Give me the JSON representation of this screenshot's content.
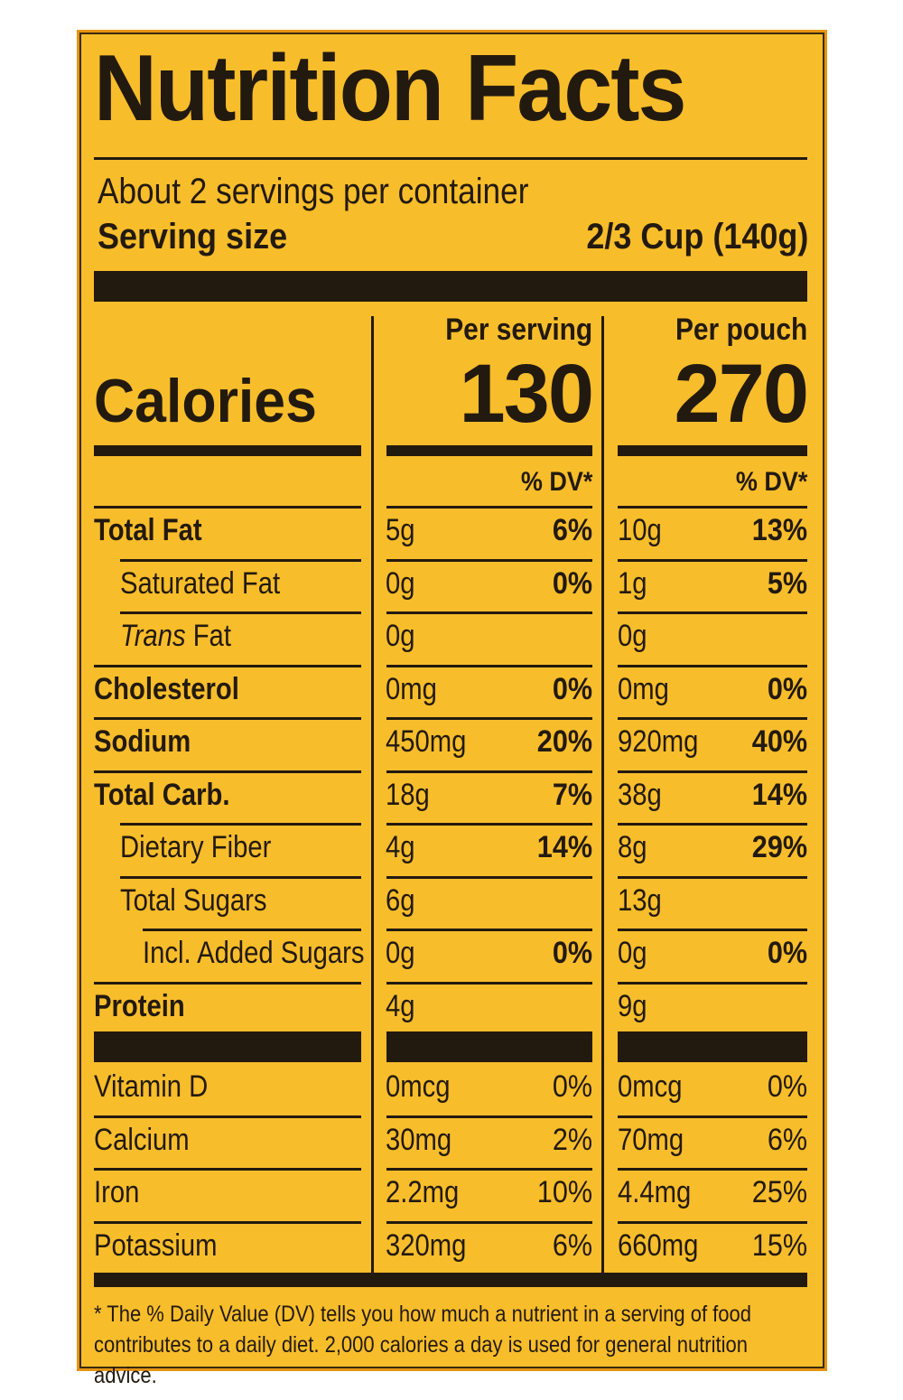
{
  "title": "Nutrition Facts",
  "servings_per_container": "About 2 servings per container",
  "serving_size_label": "Serving size",
  "serving_size_value": "2/3 Cup (140g)",
  "columns": {
    "per_serving": "Per serving",
    "per_pouch": "Per pouch"
  },
  "calories": {
    "label": "Calories",
    "per_serving": "130",
    "per_pouch": "270"
  },
  "dv_header": "% DV*",
  "nutrients": [
    {
      "label": "Total Fat",
      "bold": true,
      "indent": 0,
      "serving_amt": "5g",
      "serving_dv": "6%",
      "pouch_amt": "10g",
      "pouch_dv": "13%"
    },
    {
      "label": "Saturated Fat",
      "bold": false,
      "indent": 1,
      "serving_amt": "0g",
      "serving_dv": "0%",
      "pouch_amt": "1g",
      "pouch_dv": "5%"
    },
    {
      "label_italic": "Trans",
      "label": " Fat",
      "bold": false,
      "indent": 1,
      "serving_amt": "0g",
      "serving_dv": "",
      "pouch_amt": "0g",
      "pouch_dv": ""
    },
    {
      "label": "Cholesterol",
      "bold": true,
      "indent": 0,
      "serving_amt": "0mg",
      "serving_dv": "0%",
      "pouch_amt": "0mg",
      "pouch_dv": "0%"
    },
    {
      "label": "Sodium",
      "bold": true,
      "indent": 0,
      "serving_amt": "450mg",
      "serving_dv": "20%",
      "pouch_amt": "920mg",
      "pouch_dv": "40%"
    },
    {
      "label": "Total Carb.",
      "bold": true,
      "indent": 0,
      "serving_amt": "18g",
      "serving_dv": "7%",
      "pouch_amt": "38g",
      "pouch_dv": "14%"
    },
    {
      "label": "Dietary Fiber",
      "bold": false,
      "indent": 1,
      "serving_amt": "4g",
      "serving_dv": "14%",
      "pouch_amt": "8g",
      "pouch_dv": "29%"
    },
    {
      "label": "Total Sugars",
      "bold": false,
      "indent": 1,
      "serving_amt": "6g",
      "serving_dv": "",
      "pouch_amt": "13g",
      "pouch_dv": ""
    },
    {
      "label": "Incl. Added Sugars",
      "bold": false,
      "indent": 2,
      "serving_amt": "0g",
      "serving_dv": "0%",
      "pouch_amt": "0g",
      "pouch_dv": "0%"
    },
    {
      "label": "Protein",
      "bold": true,
      "indent": 0,
      "serving_amt": "4g",
      "serving_dv": "",
      "pouch_amt": "9g",
      "pouch_dv": ""
    }
  ],
  "vitamins": [
    {
      "label": "Vitamin D",
      "serving_amt": "0mcg",
      "serving_dv": "0%",
      "pouch_amt": "0mcg",
      "pouch_dv": "0%"
    },
    {
      "label": "Calcium",
      "serving_amt": "30mg",
      "serving_dv": "2%",
      "pouch_amt": "70mg",
      "pouch_dv": "6%"
    },
    {
      "label": "Iron",
      "serving_amt": "2.2mg",
      "serving_dv": "10%",
      "pouch_amt": "4.4mg",
      "pouch_dv": "25%"
    },
    {
      "label": "Potassium",
      "serving_amt": "320mg",
      "serving_dv": "6%",
      "pouch_amt": "660mg",
      "pouch_dv": "15%"
    }
  ],
  "footnote": "* The % Daily Value (DV) tells you how much a nutrient in a serving of food contributes to a daily diet. 2,000 calories a day is used for general nutrition advice.",
  "colors": {
    "background": "#f8bd2b",
    "ink": "#231a0f",
    "border": "#e59412"
  }
}
